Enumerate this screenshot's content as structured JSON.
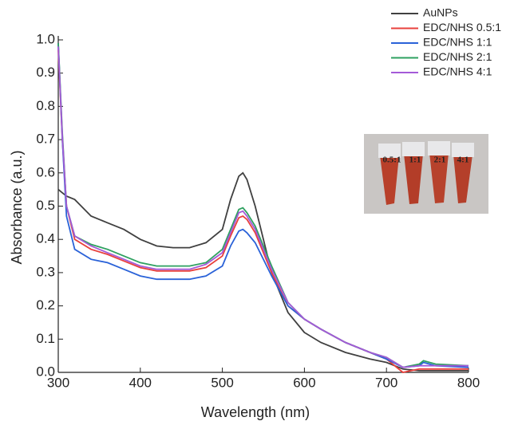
{
  "chart_data": {
    "type": "line",
    "x_label": "Wavelength (nm)",
    "y_label": "Absorbance (a.u.)",
    "x": [
      300,
      305,
      310,
      320,
      340,
      360,
      380,
      400,
      420,
      440,
      460,
      480,
      500,
      510,
      520,
      525,
      530,
      540,
      560,
      580,
      600,
      620,
      650,
      680,
      700,
      720,
      740,
      745,
      760,
      800
    ],
    "series": [
      {
        "name": "AuNPs",
        "color": "#404040",
        "values": [
          0.55,
          0.54,
          0.53,
          0.52,
          0.47,
          0.45,
          0.43,
          0.4,
          0.38,
          0.375,
          0.375,
          0.39,
          0.43,
          0.52,
          0.59,
          0.6,
          0.58,
          0.5,
          0.3,
          0.18,
          0.12,
          0.09,
          0.06,
          0.04,
          0.03,
          0.01,
          0.005,
          0.005,
          0.005,
          0.005
        ]
      },
      {
        "name": "EDC/NHS 0.5:1",
        "color": "#e8403c",
        "values": [
          0.97,
          0.7,
          0.5,
          0.4,
          0.37,
          0.355,
          0.335,
          0.315,
          0.305,
          0.305,
          0.305,
          0.315,
          0.35,
          0.41,
          0.465,
          0.47,
          0.46,
          0.42,
          0.3,
          0.2,
          0.16,
          0.13,
          0.09,
          0.06,
          0.04,
          0.0,
          0.01,
          0.01,
          0.01,
          0.01
        ]
      },
      {
        "name": "EDC/NHS 1:1",
        "color": "#2a62d8",
        "values": [
          0.99,
          0.7,
          0.47,
          0.37,
          0.34,
          0.33,
          0.31,
          0.29,
          0.28,
          0.28,
          0.28,
          0.29,
          0.32,
          0.38,
          0.425,
          0.43,
          0.42,
          0.39,
          0.29,
          0.2,
          0.16,
          0.13,
          0.09,
          0.06,
          0.04,
          0.015,
          0.02,
          0.03,
          0.02,
          0.015
        ]
      },
      {
        "name": "EDC/NHS 2:1",
        "color": "#2ea060",
        "values": [
          0.99,
          0.72,
          0.5,
          0.41,
          0.385,
          0.37,
          0.35,
          0.33,
          0.32,
          0.32,
          0.32,
          0.33,
          0.37,
          0.43,
          0.49,
          0.495,
          0.48,
          0.44,
          0.32,
          0.21,
          0.16,
          0.13,
          0.09,
          0.06,
          0.045,
          0.015,
          0.025,
          0.035,
          0.025,
          0.02
        ]
      },
      {
        "name": "EDC/NHS 4:1",
        "color": "#a45ad8",
        "values": [
          0.98,
          0.71,
          0.5,
          0.41,
          0.38,
          0.36,
          0.34,
          0.32,
          0.31,
          0.31,
          0.31,
          0.325,
          0.36,
          0.42,
          0.48,
          0.485,
          0.47,
          0.43,
          0.31,
          0.21,
          0.16,
          0.13,
          0.09,
          0.06,
          0.045,
          0.015,
          0.02,
          0.02,
          0.02,
          0.02
        ]
      }
    ],
    "xlim": [
      300,
      800
    ],
    "xticks": [
      300,
      400,
      500,
      600,
      700,
      800
    ],
    "ylim": [
      0,
      1
    ],
    "yticks": [
      {
        "value": 0,
        "label": "0.0"
      },
      0.1,
      0.2,
      0.3,
      0.4,
      0.5,
      0.6,
      0.7,
      0.8,
      0.9,
      {
        "value": 1,
        "label": "1.0"
      }
    ],
    "legend": "upper right",
    "inset_labels": [
      "0.5:1",
      "1:1",
      "2:1",
      "4:1"
    ]
  }
}
